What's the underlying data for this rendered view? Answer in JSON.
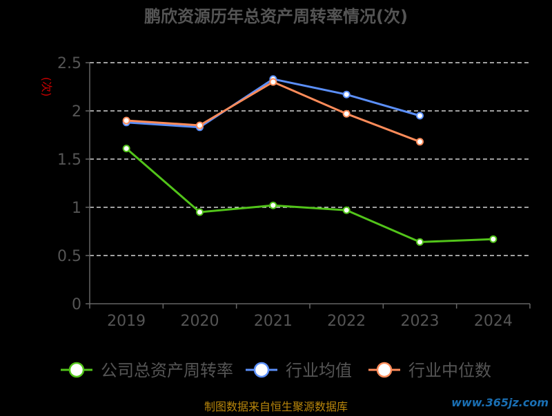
{
  "chart_data": {
    "type": "line",
    "title": "鹏欣资源历年总资产周转率情况(次)",
    "ylabel": "(次)",
    "xlabel": "",
    "categories": [
      "2019",
      "2020",
      "2021",
      "2022",
      "2023",
      "2024"
    ],
    "ylim": [
      0,
      2.5
    ],
    "yticks": [
      "0",
      "0.5",
      "1",
      "1.5",
      "2",
      "2.5"
    ],
    "grid": true,
    "legend_position": "bottom",
    "series": [
      {
        "name": "公司总资产周转率",
        "color": "#52c41a",
        "values": [
          1.61,
          0.95,
          1.02,
          0.97,
          0.64,
          0.67
        ]
      },
      {
        "name": "行业均值",
        "color": "#5b8ff9",
        "values": [
          1.88,
          1.83,
          2.33,
          2.17,
          1.95,
          null
        ]
      },
      {
        "name": "行业中位数",
        "color": "#ff8c5a",
        "values": [
          1.9,
          1.85,
          2.3,
          1.97,
          1.68,
          null
        ]
      }
    ]
  },
  "footer": {
    "source": "制图数据来自恒生聚源数据库",
    "watermark": "www.365jz.com"
  },
  "colors": {
    "background": "#000000",
    "title": "#555555",
    "axis": "#666666",
    "tick_label": "#555555",
    "ylabel": "#cc0000",
    "source": "#b8860b",
    "watermark": "#1a6fb3"
  }
}
